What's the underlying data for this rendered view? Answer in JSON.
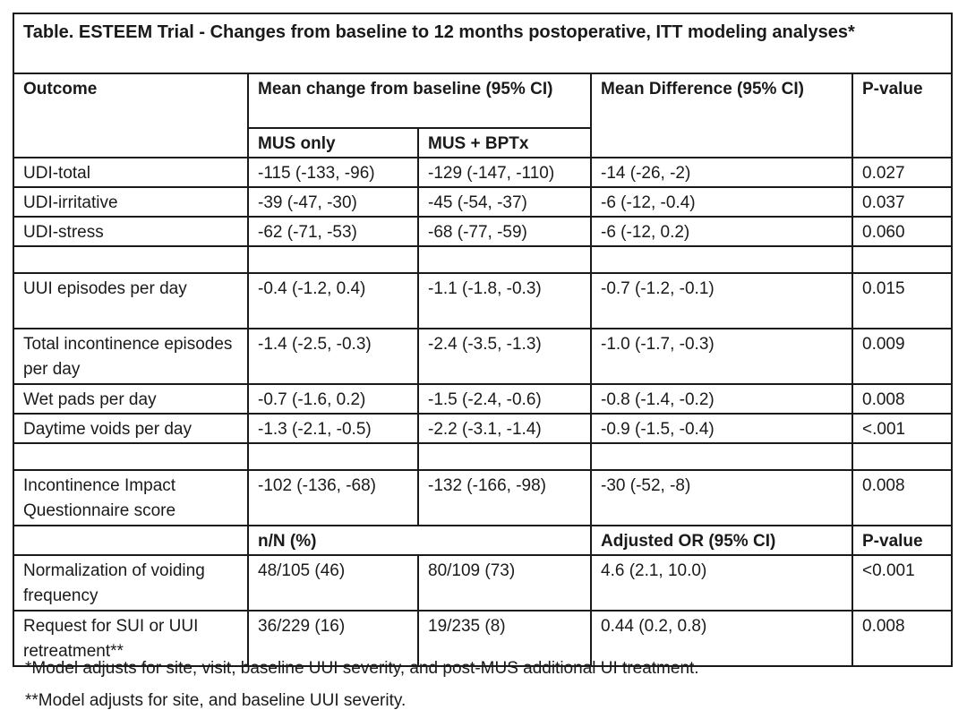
{
  "title": "Table. ESTEEM Trial - Changes from baseline to 12 months postoperative, ITT modeling analyses*",
  "header": {
    "outcome": "Outcome",
    "mean_change": "Mean change from baseline (95% CI)",
    "mean_difference": "Mean Difference (95% CI)",
    "p_value": "P-value",
    "mus_only": "MUS only",
    "mus_bptx": "MUS + BPTx"
  },
  "rows": [
    {
      "outcome": "UDI-total",
      "mus_only": "-115 (-133, -96)",
      "mus_bptx": "-129 (-147, -110)",
      "diff": "-14 (-26, -2)",
      "p": "0.027"
    },
    {
      "outcome": "UDI-irritative",
      "mus_only": "-39 (-47, -30)",
      "mus_bptx": "-45 (-54, -37)",
      "diff": "-6 (-12, -0.4)",
      "p": "0.037"
    },
    {
      "outcome": "UDI-stress",
      "mus_only": "-62 (-71, -53)",
      "mus_bptx": "-68 (-77, -59)",
      "diff": "-6 (-12, 0.2)",
      "p": "0.060"
    },
    {
      "outcome": "UUI episodes per day",
      "mus_only": "-0.4 (-1.2, 0.4)",
      "mus_bptx": "-1.1 (-1.8, -0.3)",
      "diff": "-0.7 (-1.2, -0.1)",
      "p": "0.015"
    },
    {
      "outcome": "Total incontinence episodes per day",
      "mus_only": "-1.4 (-2.5, -0.3)",
      "mus_bptx": "-2.4 (-3.5, -1.3)",
      "diff": "-1.0 (-1.7, -0.3)",
      "p": "0.009"
    },
    {
      "outcome": "Wet pads per day",
      "mus_only": "-0.7 (-1.6, 0.2)",
      "mus_bptx": "-1.5 (-2.4, -0.6)",
      "diff": "-0.8 (-1.4, -0.2)",
      "p": "0.008"
    },
    {
      "outcome": "Daytime voids per day",
      "mus_only": "-1.3 (-2.1, -0.5)",
      "mus_bptx": "-2.2 (-3.1, -1.4)",
      "diff": "-0.9 (-1.5, -0.4)",
      "p": "<.001"
    },
    {
      "outcome": "Incontinence Impact Questionnaire score",
      "mus_only": "-102 (-136, -68)",
      "mus_bptx": "-132 (-166, -98)",
      "diff": "-30 (-52, -8)",
      "p": "0.008"
    }
  ],
  "header2": {
    "n_pct": "n/N (%)",
    "adjusted_or": "Adjusted OR (95% CI)",
    "p_value": "P-value"
  },
  "rows2": [
    {
      "outcome": "Normalization of voiding frequency",
      "mus_only": "48/105 (46)",
      "mus_bptx": "80/109 (73)",
      "or": "4.6 (2.1, 10.0)",
      "p": "<0.001"
    },
    {
      "outcome": "Request for SUI or UUI retreatment**",
      "mus_only": "36/229 (16)",
      "mus_bptx": "19/235 (8)",
      "or": "0.44 (0.2, 0.8)",
      "p": "0.008"
    }
  ],
  "footnotes": [
    "*Model adjusts for site, visit, baseline UUI severity, and post-MUS additional UI treatment.",
    "**Model adjusts for site, and baseline UUI severity."
  ]
}
